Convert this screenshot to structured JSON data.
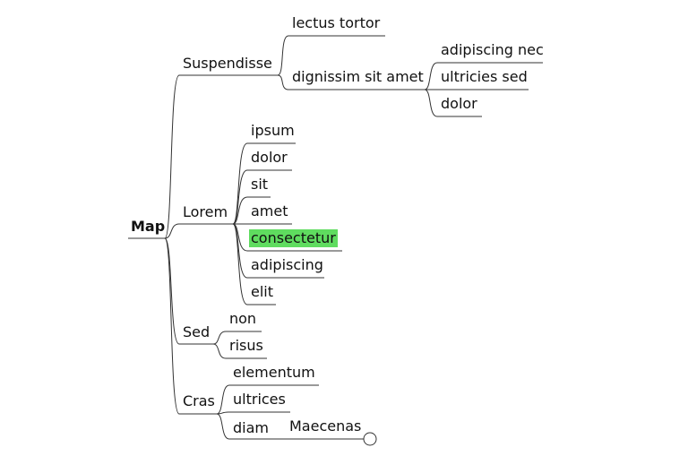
{
  "map": {
    "root": "Map",
    "branches": {
      "suspendisse": {
        "label": "Suspendisse",
        "children": {
          "lectus_tortor": "lectus tortor",
          "dignissim": {
            "label": "dignissim sit amet",
            "children": [
              "adipiscing nec",
              "ultricies sed",
              "dolor"
            ]
          }
        }
      },
      "lorem": {
        "label": "Lorem",
        "children": [
          "ipsum",
          "dolor",
          "sit",
          "amet",
          "consectetur",
          "adipiscing",
          "elit"
        ],
        "highlighted": "consectetur",
        "highlight_color": "#5fdc5f"
      },
      "sed": {
        "label": "Sed",
        "children": [
          "non",
          "risus"
        ]
      },
      "cras": {
        "label": "Cras",
        "children": [
          "elementum",
          "ultrices",
          "diam"
        ],
        "diam_child": "Maecenas"
      }
    }
  }
}
